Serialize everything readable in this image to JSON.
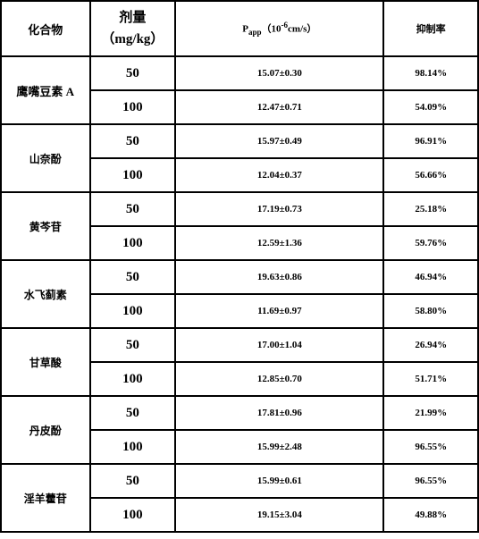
{
  "header": {
    "compound": "化合物",
    "dose_l1": "剂量",
    "dose_l2": "（mg/kg）",
    "papp_prefix": "P",
    "papp_sub": "app",
    "papp_mid": "（10",
    "papp_sup": "-6",
    "papp_suffix": "cm/s）",
    "rate": "抑制率"
  },
  "rows": [
    {
      "name": "鹰嘴豆素 A",
      "d1": "50",
      "p1": "15.07±0.30",
      "r1": "98.14%",
      "d2": "100",
      "p2": "12.47±0.71",
      "r2": "54.09%"
    },
    {
      "name": "山奈酚",
      "d1": "50",
      "p1": "15.97±0.49",
      "r1": "96.91%",
      "d2": "100",
      "p2": "12.04±0.37",
      "r2": "56.66%"
    },
    {
      "name": "黄芩苷",
      "d1": "50",
      "p1": "17.19±0.73",
      "r1": "25.18%",
      "d2": "100",
      "p2": "12.59±1.36",
      "r2": "59.76%"
    },
    {
      "name": "水飞蓟素",
      "d1": "50",
      "p1": "19.63±0.86",
      "r1": "46.94%",
      "d2": "100",
      "p2": "11.69±0.97",
      "r2": "58.80%"
    },
    {
      "name": "甘草酸",
      "d1": "50",
      "p1": "17.00±1.04",
      "r1": "26.94%",
      "d2": "100",
      "p2": "12.85±0.70",
      "r2": "51.71%"
    },
    {
      "name": "丹皮酚",
      "d1": "50",
      "p1": "17.81±0.96",
      "r1": "21.99%",
      "d2": "100",
      "p2": "15.99±2.48",
      "r2": "96.55%"
    },
    {
      "name": "淫羊藿苷",
      "d1": "50",
      "p1": "15.99±0.61",
      "r1": "96.55%",
      "d2": "100",
      "p2": "19.15±3.04",
      "r2": "49.88%"
    }
  ]
}
